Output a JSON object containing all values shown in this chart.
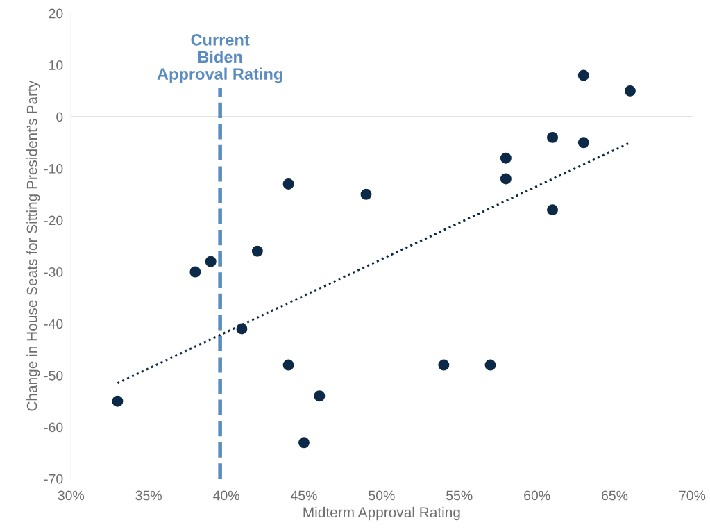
{
  "chart_data": {
    "type": "scatter",
    "xlabel": "Midterm Approval Rating",
    "ylabel": "Change in House Seats for Sitting President’s Party",
    "xlim": [
      30,
      70
    ],
    "ylim": [
      -70,
      20
    ],
    "xticks": [
      {
        "value": 30,
        "label": "30%"
      },
      {
        "value": 35,
        "label": "35%"
      },
      {
        "value": 40,
        "label": "40%"
      },
      {
        "value": 45,
        "label": "45%"
      },
      {
        "value": 50,
        "label": "50%"
      },
      {
        "value": 55,
        "label": "55%"
      },
      {
        "value": 60,
        "label": "60%"
      },
      {
        "value": 65,
        "label": "65%"
      },
      {
        "value": 70,
        "label": "70%"
      }
    ],
    "yticks": [
      -70,
      -60,
      -50,
      -40,
      -30,
      -20,
      -10,
      0,
      10,
      20
    ],
    "grid": false,
    "series": [
      {
        "marker": "circle",
        "color": "#0c2a47",
        "x": [
          33,
          38,
          39,
          41,
          42,
          44,
          44,
          45,
          46,
          49,
          54,
          57,
          58,
          58,
          61,
          61,
          63,
          63,
          66
        ],
        "values": [
          -55,
          -30,
          -28,
          -41,
          -26,
          -13,
          -48,
          -63,
          -54,
          -15,
          -48,
          -48,
          -8,
          -12,
          -4,
          -18,
          8,
          -5,
          5
        ]
      },
      {
        "type": "line",
        "color": "#0c2a47",
        "line_style": "dotted",
        "marker": "none",
        "x": [
          33,
          66
        ],
        "values": [
          -51.5,
          -5
        ]
      }
    ],
    "ref_lines": [
      {
        "axis": "y",
        "value": 0,
        "color": "#d9d9d9",
        "line_style": "solid",
        "label": null
      },
      {
        "axis": "x",
        "value": 39.6,
        "color": "#5b8cc0",
        "line_style": "dashed",
        "label": "Current\nBiden\nApproval Rating"
      }
    ]
  }
}
